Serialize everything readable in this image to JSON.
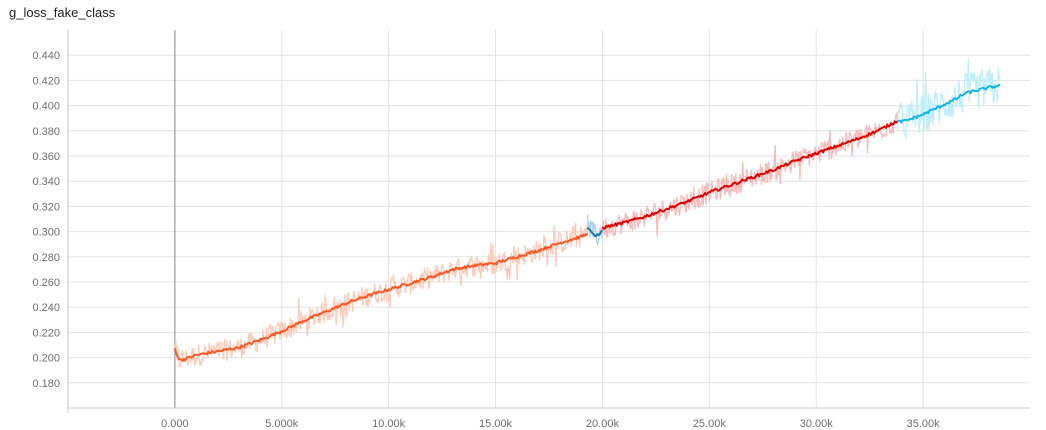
{
  "chart_data": {
    "type": "line",
    "title": "g_loss_fake_class",
    "xlabel": "",
    "ylabel": "",
    "xlim": [
      -5000,
      40000
    ],
    "ylim": [
      0.16,
      0.46
    ],
    "grid": true,
    "x_ticks": [
      0,
      5000,
      10000,
      15000,
      20000,
      25000,
      30000,
      35000
    ],
    "x_tick_labels": [
      "0.000",
      "5.000k",
      "10.00k",
      "15.00k",
      "20.00k",
      "25.00k",
      "30.00k",
      "35.00k"
    ],
    "y_ticks": [
      0.18,
      0.2,
      0.22,
      0.24,
      0.26,
      0.28,
      0.3,
      0.32,
      0.34,
      0.36,
      0.38,
      0.4,
      0.42,
      0.44
    ],
    "y_tick_labels": [
      "0.180",
      "0.200",
      "0.220",
      "0.240",
      "0.260",
      "0.280",
      "0.300",
      "0.320",
      "0.340",
      "0.360",
      "0.380",
      "0.400",
      "0.420",
      "0.440"
    ],
    "series": [
      {
        "color": "#ff5722",
        "raw_color": "#fcc7b4",
        "x": [
          0,
          200,
          500,
          1000,
          2000,
          3000,
          4000,
          5000,
          6000,
          7000,
          8000,
          9000,
          10000,
          11000,
          12000,
          13000,
          14000,
          15000,
          16000,
          17000,
          18000,
          19000,
          19300
        ],
        "y": [
          0.207,
          0.198,
          0.199,
          0.202,
          0.205,
          0.208,
          0.214,
          0.221,
          0.229,
          0.236,
          0.243,
          0.249,
          0.254,
          0.259,
          0.264,
          0.27,
          0.273,
          0.275,
          0.28,
          0.285,
          0.291,
          0.296,
          0.298
        ]
      },
      {
        "color": "#1f77b4",
        "raw_color": "#a6cbe6",
        "x": [
          19300,
          19500,
          19700,
          19900,
          20000
        ],
        "y": [
          0.303,
          0.3,
          0.296,
          0.299,
          0.301
        ]
      },
      {
        "color": "#dd0000",
        "raw_color": "#f5b5b5",
        "x": [
          20000,
          21000,
          22000,
          23000,
          24000,
          25000,
          26000,
          27000,
          28000,
          29000,
          30000,
          31000,
          32000,
          33000,
          33800
        ],
        "y": [
          0.303,
          0.307,
          0.312,
          0.318,
          0.324,
          0.331,
          0.337,
          0.343,
          0.349,
          0.356,
          0.362,
          0.368,
          0.374,
          0.381,
          0.388
        ]
      },
      {
        "color": "#12b5ea",
        "raw_color": "#b9ecfb",
        "x": [
          33800,
          34200,
          35000,
          35500,
          36000,
          36500,
          37000,
          37500,
          38000,
          38600
        ],
        "y": [
          0.387,
          0.388,
          0.393,
          0.397,
          0.401,
          0.405,
          0.41,
          0.412,
          0.414,
          0.416
        ]
      }
    ]
  }
}
